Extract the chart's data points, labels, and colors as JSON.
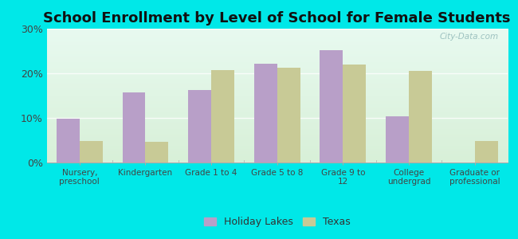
{
  "title": "School Enrollment by Level of School for Female Students",
  "categories": [
    "Nursery,\npreschool",
    "Kindergarten",
    "Grade 1 to 4",
    "Grade 5 to 8",
    "Grade 9 to\n12",
    "College\nundergrad",
    "Graduate or\nprofessional"
  ],
  "holiday_lakes": [
    9.9,
    15.8,
    16.3,
    22.2,
    25.1,
    10.4,
    0.0
  ],
  "texas": [
    4.8,
    4.7,
    20.8,
    21.3,
    22.0,
    20.6,
    4.9
  ],
  "bar_color_hl": "#b89fc8",
  "bar_color_tx": "#c8ca96",
  "background_outer": "#00e8e8",
  "ylim": [
    0,
    30
  ],
  "yticks": [
    0,
    10,
    20,
    30
  ],
  "ytick_labels": [
    "0%",
    "10%",
    "20%",
    "30%"
  ],
  "legend_labels": [
    "Holiday Lakes",
    "Texas"
  ],
  "title_fontsize": 13,
  "watermark": "City-Data.com"
}
